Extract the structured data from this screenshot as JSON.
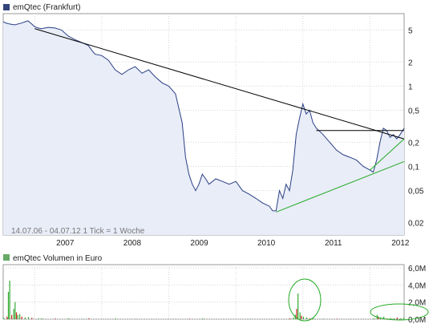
{
  "chart_data": [
    {
      "type": "line",
      "title": "emQtec (Frankfurt)",
      "scale": "log",
      "ylim": [
        0.014,
        8
      ],
      "xlim": [
        2006.53,
        2012.51
      ],
      "y_ticks": [
        {
          "value": 5,
          "label": "5"
        },
        {
          "value": 2,
          "label": "2"
        },
        {
          "value": 1,
          "label": "1"
        },
        {
          "value": 0.5,
          "label": "0,5"
        },
        {
          "value": 0.2,
          "label": "0,2"
        },
        {
          "value": 0.1,
          "label": "0,1"
        },
        {
          "value": 0.05,
          "label": "0,05"
        },
        {
          "value": 0.02,
          "label": "0,02"
        }
      ],
      "x_ticks": [
        {
          "value": 2007,
          "label": "2007"
        },
        {
          "value": 2008,
          "label": "2008"
        },
        {
          "value": 2009,
          "label": "2009"
        },
        {
          "value": 2010,
          "label": "2010"
        },
        {
          "value": 2011,
          "label": "2011"
        },
        {
          "value": 2012,
          "label": "2012"
        }
      ],
      "grid": true,
      "annotation": "14.07.06 - 04.07.12   1 Tick = 1 Woche",
      "series": [
        {
          "x": [
            2006.53,
            2006.6,
            2006.7,
            2006.8,
            2006.9,
            2006.95,
            2007.0,
            2007.05,
            2007.1,
            2007.2,
            2007.3,
            2007.4,
            2007.5,
            2007.6,
            2007.7,
            2007.8,
            2007.85,
            2007.9,
            2008.0,
            2008.1,
            2008.2,
            2008.3,
            2008.4,
            2008.5,
            2008.6,
            2008.7,
            2008.8,
            2008.9,
            2009.0,
            2009.1,
            2009.2,
            2009.25,
            2009.3,
            2009.35,
            2009.4,
            2009.45,
            2009.5,
            2009.55,
            2009.6,
            2009.7,
            2009.8,
            2009.9,
            2010.0,
            2010.1,
            2010.2,
            2010.3,
            2010.4,
            2010.5,
            2010.55,
            2010.6,
            2010.65,
            2010.7,
            2010.75,
            2010.8,
            2010.85,
            2010.9,
            2010.95,
            2011.0,
            2011.05,
            2011.1,
            2011.15,
            2011.2,
            2011.3,
            2011.4,
            2011.5,
            2011.6,
            2011.7,
            2011.8,
            2011.9,
            2011.95,
            2012.0,
            2012.05,
            2012.1,
            2012.15,
            2012.2,
            2012.25,
            2012.3,
            2012.35,
            2012.4,
            2012.45,
            2012.51
          ],
          "y": [
            6.3,
            6.0,
            5.8,
            6.1,
            6.5,
            6.0,
            5.5,
            5.3,
            5.2,
            5.4,
            5.3,
            5.0,
            4.2,
            3.8,
            3.5,
            3.2,
            2.8,
            2.5,
            2.4,
            2.1,
            1.6,
            1.4,
            1.6,
            1.75,
            1.45,
            1.6,
            1.3,
            1.1,
            1.0,
            0.8,
            0.35,
            0.13,
            0.08,
            0.06,
            0.05,
            0.06,
            0.08,
            0.07,
            0.06,
            0.07,
            0.065,
            0.06,
            0.065,
            0.05,
            0.045,
            0.04,
            0.035,
            0.032,
            0.028,
            0.028,
            0.05,
            0.04,
            0.06,
            0.05,
            0.09,
            0.25,
            0.4,
            0.6,
            0.45,
            0.5,
            0.35,
            0.3,
            0.25,
            0.2,
            0.16,
            0.14,
            0.13,
            0.12,
            0.1,
            0.095,
            0.09,
            0.085,
            0.12,
            0.2,
            0.3,
            0.28,
            0.23,
            0.25,
            0.22,
            0.25,
            0.3
          ]
        }
      ],
      "trendlines": [
        {
          "x": [
            2007.0,
            2012.51
          ],
          "y": [
            5.2,
            0.22
          ],
          "color": "#000000"
        },
        {
          "x": [
            2011.2,
            2012.51
          ],
          "y": [
            0.28,
            0.28
          ],
          "color": "#000000"
        },
        {
          "x": [
            2010.6,
            2012.51
          ],
          "y": [
            0.027,
            0.115
          ],
          "color": "#22aa22"
        },
        {
          "x": [
            2012.0,
            2012.51
          ],
          "y": [
            0.09,
            0.22
          ],
          "color": "#22aa22"
        }
      ]
    },
    {
      "type": "bar",
      "title": "emQtec Volumen in Euro",
      "ylim": [
        0,
        6.0
      ],
      "y_ticks": [
        {
          "value": 6,
          "label": "6,0M"
        },
        {
          "value": 4,
          "label": "4,0M"
        },
        {
          "value": 2,
          "label": "2,0M"
        },
        {
          "value": 0,
          "label": "0,0M"
        }
      ],
      "bars": {
        "x": [
          2006.53,
          2006.58,
          2006.6,
          2006.62,
          2006.65,
          2006.68,
          2006.7,
          2006.72,
          2006.74,
          2006.77,
          2006.8,
          2006.85,
          2006.9,
          2006.95,
          2007.05,
          2007.1,
          2007.3,
          2007.5,
          2007.7,
          2007.8,
          2008.2,
          2008.5,
          2009.3,
          2009.5,
          2010.2,
          2010.8,
          2010.85,
          2010.88,
          2010.9,
          2010.92,
          2010.95,
          2010.97,
          2011.0,
          2011.05,
          2011.1,
          2011.15,
          2011.3,
          2011.5,
          2012.05,
          2012.1,
          2012.12,
          2012.15,
          2012.2,
          2012.25,
          2012.3,
          2012.35,
          2012.4,
          2012.45,
          2012.5
        ],
        "values": [
          0.15,
          0.3,
          3.2,
          4.5,
          0.5,
          1.2,
          2.0,
          0.8,
          0.5,
          0.6,
          0.3,
          0.2,
          0.25,
          0.15,
          0.1,
          0.1,
          0.08,
          0.1,
          0.05,
          0.1,
          0.1,
          0.05,
          0.05,
          0.1,
          0.05,
          0.1,
          0.2,
          0.5,
          1.2,
          3.0,
          0.8,
          0.4,
          0.3,
          0.2,
          0.1,
          0.1,
          0.05,
          0.05,
          0.1,
          0.5,
          0.3,
          0.2,
          0.3,
          0.1,
          0.15,
          0.1,
          0.2,
          0.1,
          0.2
        ]
      },
      "annotations": [
        "circle",
        "ellipse"
      ]
    }
  ]
}
